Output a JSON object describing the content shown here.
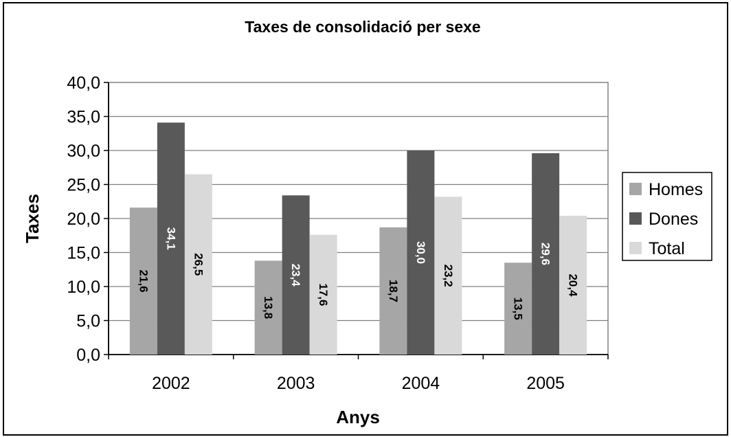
{
  "chart_data": {
    "type": "bar",
    "title": "Taxes de consolidació per sexe",
    "xlabel": "Anys",
    "ylabel": "Taxes",
    "categories": [
      "2002",
      "2003",
      "2004",
      "2005"
    ],
    "series": [
      {
        "name": "Homes",
        "values": [
          21.6,
          13.8,
          18.7,
          13.5
        ],
        "labels": [
          "21,6",
          "13,8",
          "18,7",
          "13,5"
        ],
        "color": "#a6a6a6"
      },
      {
        "name": "Dones",
        "values": [
          34.1,
          23.4,
          30.0,
          29.6
        ],
        "labels": [
          "34,1",
          "23,4",
          "30,0",
          "29,6"
        ],
        "color": "#595959"
      },
      {
        "name": "Total",
        "values": [
          26.5,
          17.6,
          23.2,
          20.4
        ],
        "labels": [
          "26,5",
          "17,6",
          "23,2",
          "20,4"
        ],
        "color": "#d9d9d9"
      }
    ],
    "ylim": [
      0,
      40
    ],
    "yticks": [
      "0,0",
      "5,0",
      "10,0",
      "15,0",
      "20,0",
      "25,0",
      "30,0",
      "35,0",
      "40,0"
    ],
    "grid": true,
    "legend": "right"
  }
}
